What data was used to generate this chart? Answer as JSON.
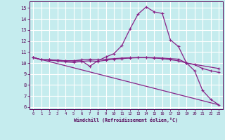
{
  "xlabel": "Windchill (Refroidissement éolien,°C)",
  "bg_color": "#c5ecee",
  "grid_color": "#ffffff",
  "line_color": "#882288",
  "xlim": [
    -0.5,
    23.5
  ],
  "ylim": [
    5.8,
    15.6
  ],
  "xticks": [
    0,
    1,
    2,
    3,
    4,
    5,
    6,
    7,
    8,
    9,
    10,
    11,
    12,
    13,
    14,
    15,
    16,
    17,
    18,
    19,
    20,
    21,
    22,
    23
  ],
  "yticks": [
    6,
    7,
    8,
    9,
    10,
    11,
    12,
    13,
    14,
    15
  ],
  "line1_x": [
    0,
    1,
    2,
    3,
    4,
    5,
    6,
    7,
    8,
    9,
    10,
    11,
    12,
    13,
    14,
    15,
    16,
    17,
    18,
    19,
    20,
    21,
    22,
    23
  ],
  "line1_y": [
    10.5,
    10.3,
    10.3,
    10.25,
    10.2,
    10.2,
    10.2,
    9.7,
    10.2,
    10.55,
    10.85,
    11.6,
    13.1,
    14.45,
    15.1,
    14.65,
    14.5,
    12.1,
    11.5,
    10.0,
    9.3,
    7.5,
    6.7,
    6.2
  ],
  "line2_x": [
    0,
    1,
    2,
    3,
    4,
    5,
    6,
    7,
    8,
    9,
    10,
    11,
    12,
    13,
    14,
    15,
    16,
    17,
    18,
    19,
    23
  ],
  "line2_y": [
    10.5,
    10.3,
    10.3,
    10.25,
    10.2,
    10.2,
    10.3,
    10.35,
    10.3,
    10.35,
    10.4,
    10.45,
    10.48,
    10.5,
    10.5,
    10.48,
    10.45,
    10.4,
    10.35,
    10.0,
    9.5
  ],
  "line3_x": [
    0,
    23
  ],
  "line3_y": [
    10.5,
    6.2
  ],
  "line4_x": [
    0,
    1,
    2,
    3,
    4,
    5,
    6,
    7,
    8,
    9,
    10,
    11,
    12,
    13,
    14,
    15,
    16,
    17,
    18,
    19,
    20,
    21,
    22,
    23
  ],
  "line4_y": [
    10.5,
    10.3,
    10.25,
    10.2,
    10.1,
    10.05,
    10.15,
    10.2,
    10.15,
    10.25,
    10.35,
    10.4,
    10.45,
    10.48,
    10.48,
    10.45,
    10.4,
    10.3,
    10.2,
    10.0,
    9.85,
    9.5,
    9.3,
    9.15
  ]
}
